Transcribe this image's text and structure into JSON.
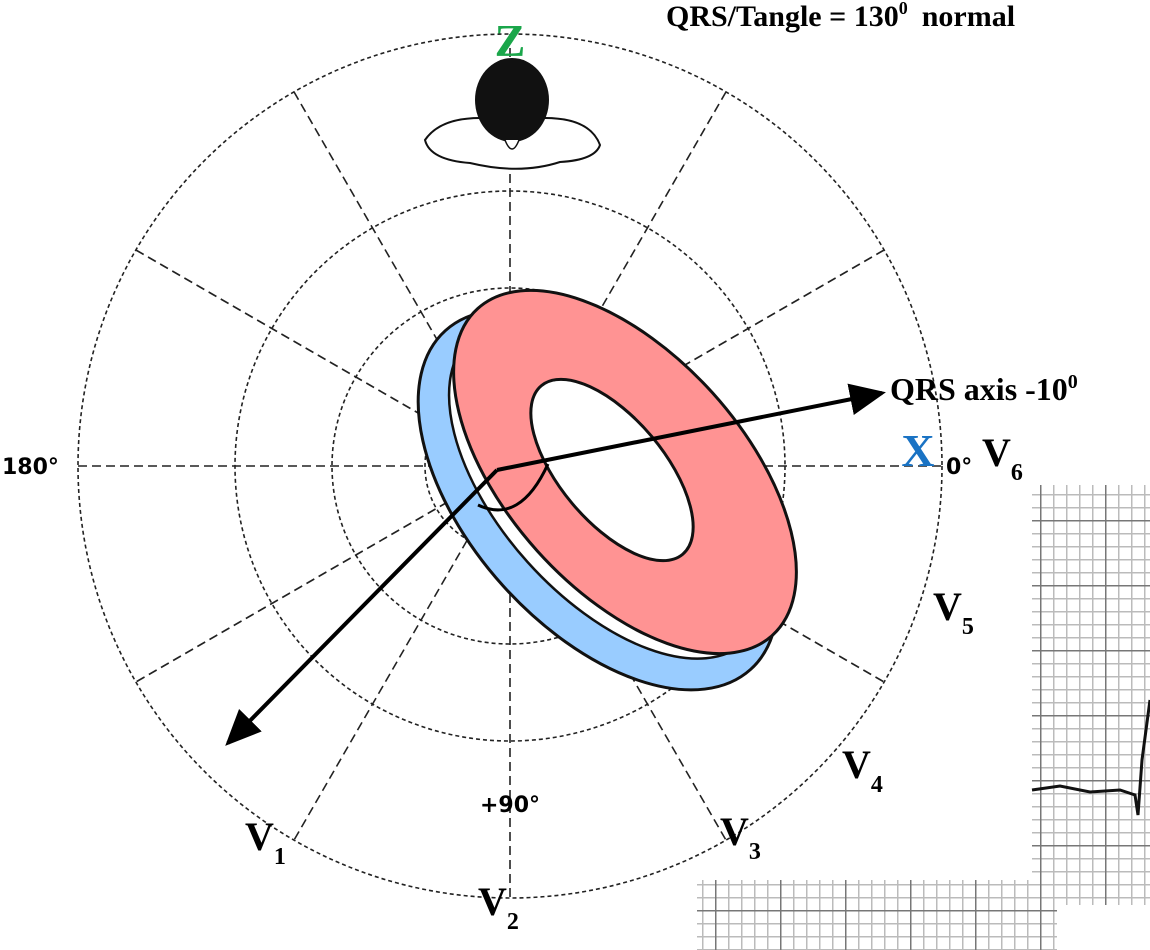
{
  "title": {
    "text": "QRS/Tangle = 130",
    "sup": "0",
    "rest": "normal"
  },
  "axes": {
    "z": "Z",
    "x": "X",
    "left": "180°",
    "right": "0°",
    "bottom": "+90°"
  },
  "leads": [
    {
      "base": "V",
      "sub": "1"
    },
    {
      "base": "V",
      "sub": "2"
    },
    {
      "base": "V",
      "sub": "3"
    },
    {
      "base": "V",
      "sub": "4"
    },
    {
      "base": "V",
      "sub": "5"
    },
    {
      "base": "V",
      "sub": "6"
    }
  ],
  "qrs_axis": {
    "text": "QRS axis -10",
    "sup": "0"
  }
}
